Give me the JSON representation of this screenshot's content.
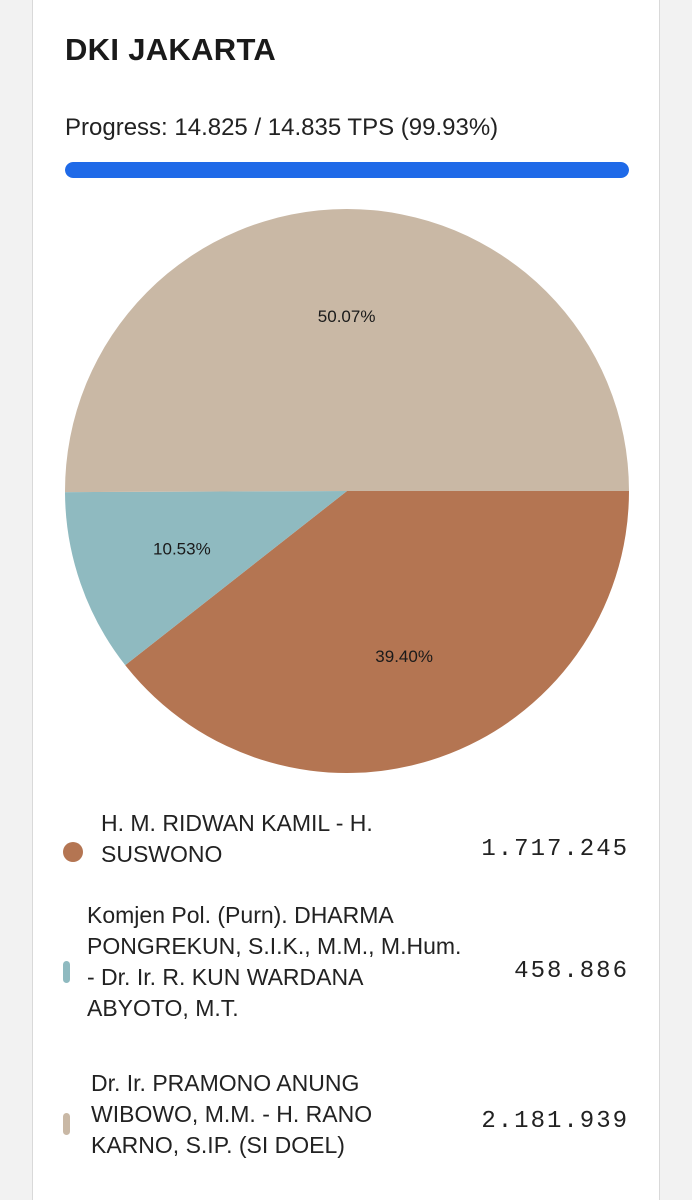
{
  "title": "DKI JAKARTA",
  "progress": {
    "label": "Progress: 14.825 / 14.835 TPS (99.93%)",
    "fraction": 0.9993,
    "bar_color": "#1f6ae8"
  },
  "chart_data": {
    "type": "pie",
    "title": "DKI JAKARTA",
    "slices": [
      {
        "name": "H. M. RIDWAN KAMIL - H.\nSUSWONO",
        "value": 1717245,
        "value_label": "1.717.245",
        "percent": 39.4,
        "percent_label": "39.40%",
        "color": "#b47552"
      },
      {
        "name": "Komjen Pol. (Purn). DHARMA\nPONGREKUN, S.I.K., M.M., M.Hum.\n- Dr. Ir. R. KUN WARDANA\nABYOTO, M.T.",
        "value": 458886,
        "value_label": "458.886",
        "percent": 10.53,
        "percent_label": "10.53%",
        "color": "#8fbac0"
      },
      {
        "name": "Dr. Ir. PRAMONO ANUNG\nWIBOWO, M.M. - H. RANO\nKARNO, S.IP. (SI DOEL)",
        "value": 2181939,
        "value_label": "2.181.939",
        "percent": 50.07,
        "percent_label": "50.07%",
        "color": "#c9b8a5"
      }
    ],
    "start_angle_deg": 90,
    "direction": "clockwise",
    "legend_position": "bottom"
  }
}
